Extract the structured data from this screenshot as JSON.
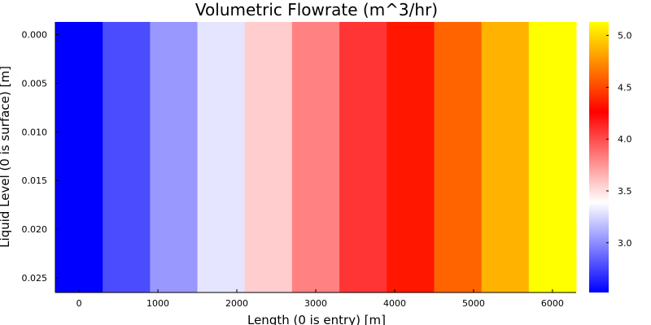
{
  "chart_data": {
    "type": "heatmap",
    "title": "Volumetric Flowrate (m^3/hr)",
    "xlabel": "Length (0 is entry) [m]",
    "ylabel": "Liquid Level (0 is surface) [m]",
    "x": [
      0,
      600,
      1200,
      1800,
      2400,
      3000,
      3600,
      4200,
      4800,
      5400,
      6000
    ],
    "values": [
      2.52,
      2.78,
      3.04,
      3.3,
      3.56,
      3.82,
      4.08,
      4.34,
      4.6,
      4.87,
      5.13
    ],
    "xlim": [
      -300,
      6300
    ],
    "ylim": [
      0.0265,
      -0.0013
    ],
    "xticks": [
      "0",
      "1000",
      "2000",
      "3000",
      "4000",
      "5000",
      "6000"
    ],
    "yticks": [
      "0.000",
      "0.005",
      "0.010",
      "0.015",
      "0.020",
      "0.025"
    ],
    "colorbar": {
      "range": [
        2.52,
        5.13
      ],
      "ticks": [
        "3.0",
        "3.5",
        "4.0",
        "4.5",
        "5.0"
      ],
      "colormap": [
        "#0000ff",
        "#ffffff",
        "#ff0000",
        "#ffff00"
      ]
    },
    "grid": false,
    "legend": "none"
  }
}
